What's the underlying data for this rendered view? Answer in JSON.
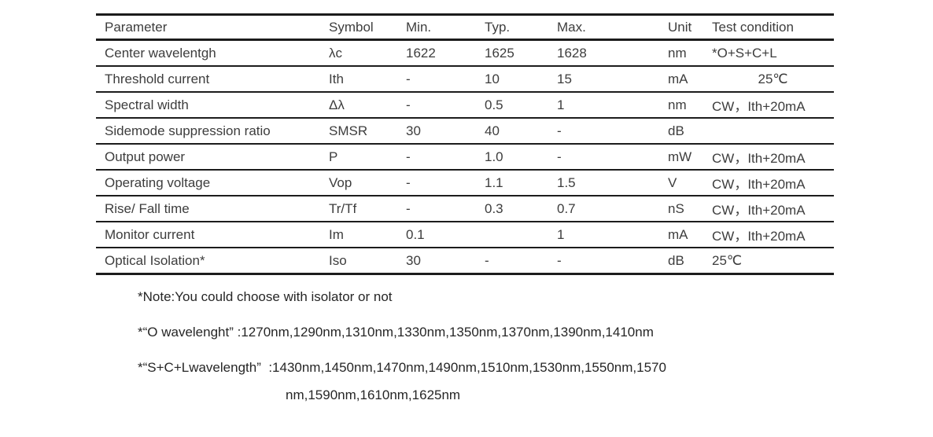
{
  "page": {
    "background_color": "#ffffff",
    "text_color": "#3d3d3d",
    "line_color": "#1c1c1c"
  },
  "table": {
    "columns": [
      "Parameter",
      "Symbol",
      "Min.",
      "Typ.",
      "Max.",
      "Unit",
      "Test condition"
    ],
    "rows": [
      {
        "parameter": "Center wavelentgh",
        "symbol": "λc",
        "min": "1622",
        "typ": "1625",
        "max": "1628",
        "unit": "nm",
        "condition": "*O+S+C+L"
      },
      {
        "parameter": "Threshold current",
        "symbol": "Ith",
        "min": "-",
        "typ": "10",
        "max": "15",
        "unit": "mA",
        "condition": "25℃"
      },
      {
        "parameter": "Spectral width",
        "symbol": "Δλ",
        "min": "-",
        "typ": "0.5",
        "max": "1",
        "unit": "nm",
        "condition": "CW，Ith+20mA"
      },
      {
        "parameter": "Sidemode suppression ratio",
        "symbol": "SMSR",
        "min": "30",
        "typ": "40",
        "max": "-",
        "unit": "dB",
        "condition": ""
      },
      {
        "parameter": "Output power",
        "symbol": "P",
        "min": "-",
        "typ": "1.0",
        "max": "-",
        "unit": "mW",
        "condition": "CW，Ith+20mA"
      },
      {
        "parameter": "Operating voltage",
        "symbol": "Vop",
        "min": "-",
        "typ": "1.1",
        "max": "1.5",
        "unit": "V",
        "condition": "CW，Ith+20mA"
      },
      {
        "parameter": "Rise/ Fall time",
        "symbol": "Tr/Tf",
        "min": "-",
        "typ": "0.3",
        "max": "0.7",
        "unit": "nS",
        "condition": "CW，Ith+20mA"
      },
      {
        "parameter": "Monitor current",
        "symbol": "Im",
        "min": "0.1",
        "typ": "",
        "max": "1",
        "unit": "mA",
        "condition": "CW，Ith+20mA"
      },
      {
        "parameter": "Optical Isolation*",
        "symbol": "Iso",
        "min": "30",
        "typ": "-",
        "max": "-",
        "unit": "dB",
        "condition": "25℃"
      }
    ]
  },
  "notes": {
    "note1": "*Note:You could choose with isolator or not",
    "note2": "*“O wavelenght” :1270nm,1290nm,1310nm,1330nm,1350nm,1370nm,1390nm,1410nm",
    "note3_line1": "*“S+C+Lwavelength”  :1430nm,1450nm,1470nm,1490nm,1510nm,1530nm,1550nm,1570",
    "note3_line2": "nm,1590nm,1610nm,1625nm"
  }
}
